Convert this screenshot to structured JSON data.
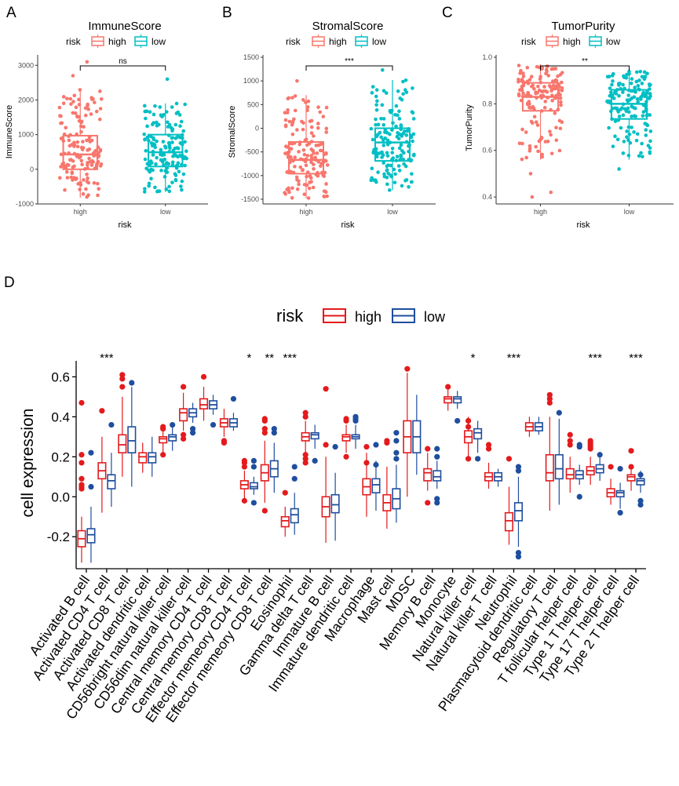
{
  "colors": {
    "high_top": "#F8766D",
    "low_top": "#00BFC4",
    "high_d": "#E41A1C",
    "low_d": "#1F4E9E",
    "axis": "#333333",
    "tick_text": "#4D4D4D"
  },
  "panel_labels": {
    "A": "A",
    "B": "B",
    "C": "C",
    "D": "D"
  },
  "legend_top": {
    "title": "risk",
    "high": "high",
    "low": "low"
  },
  "legend_d": {
    "title": "risk",
    "high": "high",
    "low": "low"
  },
  "chart_data": [
    {
      "id": "A",
      "type": "box",
      "title": "ImmuneScore",
      "xlabel": "risk",
      "ylabel": "ImmuneScore",
      "categories": [
        "high",
        "low"
      ],
      "ylim": [
        -1000,
        3300
      ],
      "yticks": [
        -1000,
        0,
        1000,
        2000,
        3000
      ],
      "significance": "ns",
      "boxes": [
        {
          "group": "high",
          "min": -820,
          "q1": 0,
          "median": 430,
          "q3": 970,
          "max": 2300,
          "outliers": [
            2700,
            3100
          ]
        },
        {
          "group": "low",
          "min": -650,
          "q1": 80,
          "median": 490,
          "q3": 1000,
          "max": 1900,
          "outliers": [
            2600
          ]
        }
      ]
    },
    {
      "id": "B",
      "type": "box",
      "title": "StromalScore",
      "xlabel": "risk",
      "ylabel": "StromalScore",
      "categories": [
        "high",
        "low"
      ],
      "ylim": [
        -1600,
        1550
      ],
      "yticks": [
        -1500,
        -1000,
        -500,
        0,
        500,
        1000,
        1500
      ],
      "significance": "***",
      "boxes": [
        {
          "group": "high",
          "min": -1480,
          "q1": -960,
          "median": -670,
          "q3": -290,
          "max": 700,
          "outliers": [
            1000
          ]
        },
        {
          "group": "low",
          "min": -1310,
          "q1": -690,
          "median": -300,
          "q3": 0,
          "max": 1020,
          "outliers": [
            1230
          ]
        }
      ]
    },
    {
      "id": "C",
      "type": "box",
      "title": "TumorPurity",
      "xlabel": "risk",
      "ylabel": "TumorPurity",
      "categories": [
        "high",
        "low"
      ],
      "ylim": [
        0.37,
        1.01
      ],
      "yticks": [
        0.4,
        0.6,
        0.8,
        1.0
      ],
      "significance": "**",
      "boxes": [
        {
          "group": "high",
          "min": 0.56,
          "q1": 0.77,
          "median": 0.83,
          "q3": 0.89,
          "max": 0.97,
          "outliers": [
            0.5,
            0.42,
            0.4
          ]
        },
        {
          "group": "low",
          "min": 0.56,
          "q1": 0.735,
          "median": 0.8,
          "q3": 0.86,
          "max": 0.94,
          "outliers": [
            0.52
          ]
        }
      ]
    },
    {
      "id": "D",
      "type": "box",
      "ylabel": "cell expression",
      "ylim": [
        -0.36,
        0.68
      ],
      "yticks": [
        -0.2,
        0.0,
        0.2,
        0.4,
        0.6
      ],
      "categories": [
        "Activated B cell",
        "Activated CD4 T cell",
        "Activated CD8 T cell",
        "Activated dendritic cell",
        "CD56bright natural killer cell",
        "CD56dim natural killer cell",
        "Central memory CD4 T cell",
        "Central memory CD8 T cell",
        "Effector memeory CD4 T cell",
        "Effector memeory CD8 T cell",
        "Eosinophil",
        "Gamma delta T cell",
        "Immature B cell",
        "Immature dendritic cell",
        "Macrophage",
        "Mast cell",
        "MDSC",
        "Memory B cell",
        "Monocyte",
        "Natural killer cell",
        "Natural killer T cell",
        "Neutrophil",
        "Plasmacytoid dendritic cell",
        "Regulatory T cell",
        "T follicular helper cell",
        "Type 1 T helper cell",
        "Type 17 T helper cell",
        "Type 2 T helper cell"
      ],
      "significance": [
        "",
        "***",
        "",
        "",
        "",
        "",
        "",
        "",
        "*",
        "**",
        "***",
        "",
        "",
        "",
        "",
        "",
        "",
        "",
        "",
        "*",
        "",
        "***",
        "",
        "",
        "",
        "***",
        "",
        "***"
      ],
      "series": [
        {
          "name": "high",
          "boxes": [
            [
              -0.33,
              -0.25,
              -0.21,
              -0.17,
              -0.1
            ],
            [
              -0.08,
              0.09,
              0.13,
              0.17,
              0.3
            ],
            [
              0.1,
              0.22,
              0.26,
              0.31,
              0.5
            ],
            [
              0.12,
              0.17,
              0.2,
              0.22,
              0.27
            ],
            [
              0.22,
              0.27,
              0.29,
              0.3,
              0.33
            ],
            [
              0.33,
              0.38,
              0.42,
              0.44,
              0.52
            ],
            [
              0.38,
              0.44,
              0.46,
              0.49,
              0.55
            ],
            [
              0.3,
              0.35,
              0.37,
              0.39,
              0.44
            ],
            [
              -0.01,
              0.04,
              0.06,
              0.08,
              0.13
            ],
            [
              -0.03,
              0.08,
              0.12,
              0.16,
              0.28
            ],
            [
              -0.2,
              -0.15,
              -0.12,
              -0.1,
              -0.05
            ],
            [
              0.22,
              0.28,
              0.3,
              0.32,
              0.38
            ],
            [
              -0.23,
              -0.1,
              -0.05,
              0.0,
              0.2
            ],
            [
              0.22,
              0.28,
              0.3,
              0.31,
              0.36
            ],
            [
              -0.1,
              0.01,
              0.05,
              0.09,
              0.22
            ],
            [
              -0.16,
              -0.07,
              -0.03,
              0.01,
              0.15
            ],
            [
              0.0,
              0.22,
              0.3,
              0.38,
              0.62
            ],
            [
              0.03,
              0.08,
              0.12,
              0.14,
              0.22
            ],
            [
              0.43,
              0.47,
              0.49,
              0.5,
              0.54
            ],
            [
              0.19,
              0.27,
              0.3,
              0.33,
              0.4
            ],
            [
              0.04,
              0.08,
              0.1,
              0.12,
              0.17
            ],
            [
              -0.24,
              -0.17,
              -0.12,
              -0.08,
              0.05
            ],
            [
              0.3,
              0.33,
              0.35,
              0.37,
              0.4
            ],
            [
              -0.07,
              0.08,
              0.12,
              0.21,
              0.4
            ],
            [
              0.02,
              0.09,
              0.11,
              0.14,
              0.2
            ],
            [
              0.06,
              0.11,
              0.13,
              0.15,
              0.2
            ],
            [
              -0.04,
              0.0,
              0.02,
              0.04,
              0.09
            ],
            [
              0.03,
              0.08,
              0.1,
              0.11,
              0.16
            ]
          ]
        },
        {
          "name": "low",
          "boxes": [
            [
              -0.33,
              -0.23,
              -0.19,
              -0.16,
              -0.05
            ],
            [
              -0.05,
              0.04,
              0.08,
              0.11,
              0.22
            ],
            [
              0.05,
              0.22,
              0.28,
              0.35,
              0.55
            ],
            [
              0.1,
              0.17,
              0.2,
              0.22,
              0.3
            ],
            [
              0.23,
              0.28,
              0.3,
              0.31,
              0.35
            ],
            [
              0.37,
              0.4,
              0.42,
              0.44,
              0.47
            ],
            [
              0.41,
              0.44,
              0.46,
              0.48,
              0.51
            ],
            [
              0.33,
              0.35,
              0.37,
              0.39,
              0.42
            ],
            [
              0.01,
              0.04,
              0.05,
              0.07,
              0.1
            ],
            [
              0.02,
              0.1,
              0.14,
              0.18,
              0.27
            ],
            [
              -0.19,
              -0.13,
              -0.09,
              -0.06,
              0.02
            ],
            [
              0.24,
              0.29,
              0.31,
              0.32,
              0.36
            ],
            [
              -0.22,
              -0.08,
              -0.04,
              0.01,
              0.12
            ],
            [
              0.24,
              0.29,
              0.3,
              0.31,
              0.36
            ],
            [
              -0.07,
              0.02,
              0.06,
              0.09,
              0.18
            ],
            [
              -0.13,
              -0.06,
              -0.01,
              0.04,
              0.16
            ],
            [
              0.11,
              0.22,
              0.3,
              0.38,
              0.51
            ],
            [
              0.04,
              0.08,
              0.1,
              0.13,
              0.18
            ],
            [
              0.44,
              0.47,
              0.49,
              0.5,
              0.53
            ],
            [
              0.22,
              0.29,
              0.32,
              0.34,
              0.38
            ],
            [
              0.05,
              0.08,
              0.1,
              0.12,
              0.14
            ],
            [
              -0.25,
              -0.12,
              -0.07,
              -0.03,
              0.1
            ],
            [
              0.31,
              0.33,
              0.35,
              0.37,
              0.4
            ],
            [
              -0.04,
              0.09,
              0.14,
              0.21,
              0.39
            ],
            [
              0.06,
              0.09,
              0.11,
              0.13,
              0.16
            ],
            [
              0.08,
              0.12,
              0.14,
              0.16,
              0.21
            ],
            [
              -0.06,
              0.0,
              0.02,
              0.03,
              0.07
            ],
            [
              0.02,
              0.06,
              0.08,
              0.09,
              0.13
            ]
          ]
        }
      ],
      "outliers": [
        [
          [
            0.47,
            0.21,
            0.17,
            0.09,
            0.06,
            0.05,
            0.04
          ],
          [
            0.22,
            0.05
          ]
        ],
        [
          [
            0.43
          ],
          [
            0.36
          ]
        ],
        [
          [
            0.61,
            0.59,
            0.55
          ],
          [
            0.57
          ]
        ],
        [
          [],
          []
        ],
        [
          [
            0.35,
            0.34,
            0.21
          ],
          [
            0.36
          ]
        ],
        [
          [
            0.55,
            0.29,
            0.31
          ],
          [
            0.32,
            0.34
          ]
        ],
        [
          [
            0.6
          ],
          [
            0.36
          ]
        ],
        [
          [
            0.27,
            0.28
          ],
          [
            0.49
          ]
        ],
        [
          [
            0.17,
            0.18,
            0.15,
            -0.02
          ],
          [
            0.18,
            0.15,
            -0.03
          ]
        ],
        [
          [
            0.39,
            0.38,
            0.34,
            0.32,
            -0.07
          ],
          [
            0.34,
            0.32
          ]
        ],
        [
          [
            0.02
          ],
          [
            0.09,
            0.15
          ]
        ],
        [
          [
            0.42,
            0.4,
            0.21,
            0.19,
            0.17
          ],
          [
            0.18
          ]
        ],
        [
          [
            0.54,
            0.26
          ],
          [
            0.25
          ]
        ],
        [
          [
            0.39,
            0.38,
            0.2
          ],
          [
            0.4,
            0.39,
            0.38
          ]
        ],
        [
          [
            0.25,
            0.17
          ],
          [
            0.26,
            0.16
          ]
        ],
        [
          [
            0.28,
            0.27
          ],
          [
            0.32,
            0.28,
            0.22,
            0.19
          ]
        ],
        [
          [
            0.64
          ],
          []
        ],
        [
          [
            0.24,
            -0.03
          ],
          [
            0.24,
            0.2,
            -0.01,
            -0.03
          ]
        ],
        [
          [
            0.55
          ],
          [
            0.38
          ]
        ],
        [
          [
            0.38,
            0.35,
            0.19
          ],
          [
            0.19
          ]
        ],
        [
          [
            0.26,
            0.24
          ],
          []
        ],
        [
          [
            0.19
          ],
          [
            0.15,
            0.13,
            -0.28,
            -0.3
          ]
        ],
        [
          [],
          []
        ],
        [
          [
            0.51,
            0.49,
            0.47
          ],
          [
            0.42
          ]
        ],
        [
          [
            0.31,
            0.28,
            0.26
          ],
          [
            0.26,
            0.25,
            0.0
          ]
        ],
        [
          [
            0.28,
            0.27,
            0.26,
            0.25,
            0.24
          ],
          [
            0.21
          ]
        ],
        [
          [
            0.15
          ],
          [
            -0.08,
            0.14
          ]
        ],
        [
          [
            0.23,
            0.15
          ],
          [
            0.11,
            -0.02,
            -0.04
          ]
        ]
      ]
    }
  ]
}
